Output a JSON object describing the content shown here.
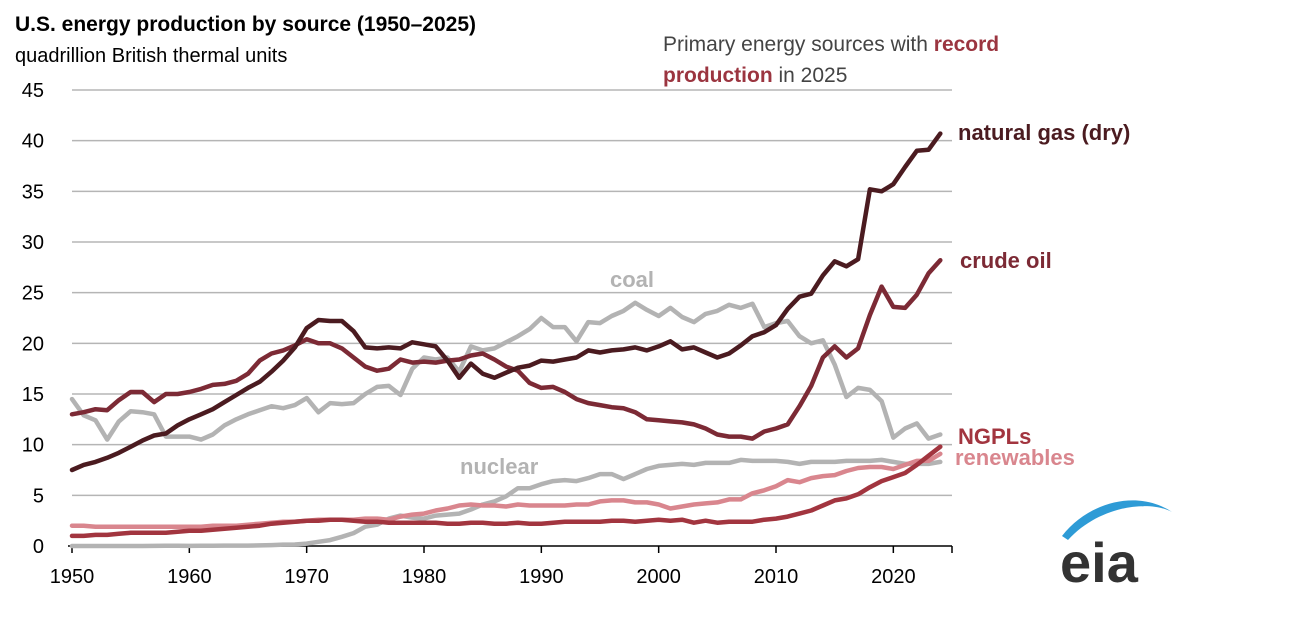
{
  "chart_data": {
    "type": "line",
    "title": "U.S. energy production by source (1950–2025)",
    "subtitle": "quadrillion British thermal units",
    "annotation": [
      "Primary energy sources with",
      "record",
      "production",
      "in 2025"
    ],
    "logo": "eia",
    "x": [
      1950,
      1951,
      1952,
      1953,
      1954,
      1955,
      1956,
      1957,
      1958,
      1959,
      1960,
      1961,
      1962,
      1963,
      1964,
      1965,
      1966,
      1967,
      1968,
      1969,
      1970,
      1971,
      1972,
      1973,
      1974,
      1975,
      1976,
      1977,
      1978,
      1979,
      1980,
      1981,
      1982,
      1983,
      1984,
      1985,
      1986,
      1987,
      1988,
      1989,
      1990,
      1991,
      1992,
      1993,
      1994,
      1995,
      1996,
      1997,
      1998,
      1999,
      2000,
      2001,
      2002,
      2003,
      2004,
      2005,
      2006,
      2007,
      2008,
      2009,
      2010,
      2011,
      2012,
      2013,
      2014,
      2015,
      2016,
      2017,
      2018,
      2019,
      2020,
      2021,
      2022,
      2023,
      2024
    ],
    "xlim": [
      1950,
      2025
    ],
    "xticks": [
      1950,
      1960,
      1970,
      1980,
      1990,
      2000,
      2010,
      2020
    ],
    "ylim": [
      0,
      45
    ],
    "yticks": [
      0,
      5,
      10,
      15,
      20,
      25,
      30,
      35,
      40,
      45
    ],
    "grid": true,
    "series": [
      {
        "name": "coal",
        "color": "#b3b3b3",
        "values": [
          14.5,
          12.9,
          12.4,
          10.5,
          12.3,
          13.3,
          13.2,
          13.0,
          10.8,
          10.8,
          10.8,
          10.5,
          11.0,
          11.9,
          12.5,
          13.0,
          13.4,
          13.8,
          13.6,
          13.9,
          14.6,
          13.2,
          14.1,
          14.0,
          14.1,
          15.0,
          15.7,
          15.8,
          14.9,
          17.5,
          18.6,
          18.4,
          18.6,
          17.2,
          19.7,
          19.3,
          19.5,
          20.1,
          20.7,
          21.4,
          22.5,
          21.6,
          21.6,
          20.2,
          22.1,
          22.0,
          22.7,
          23.2,
          24.0,
          23.3,
          22.7,
          23.5,
          22.6,
          22.1,
          22.9,
          23.2,
          23.8,
          23.5,
          23.9,
          21.6,
          22.0,
          22.2,
          20.7,
          20.0,
          20.3,
          17.9,
          14.7,
          15.6,
          15.4,
          14.3,
          10.7,
          11.6,
          12.1,
          10.6,
          11.0
        ]
      },
      {
        "name": "nuclear",
        "color": "#b3b3b3",
        "values": [
          0,
          0,
          0,
          0,
          0,
          0,
          0,
          0.01,
          0.02,
          0.02,
          0.01,
          0.02,
          0.03,
          0.04,
          0.04,
          0.04,
          0.06,
          0.09,
          0.14,
          0.15,
          0.24,
          0.41,
          0.58,
          0.91,
          1.27,
          1.9,
          2.1,
          2.7,
          3.0,
          2.8,
          2.7,
          3.0,
          3.1,
          3.2,
          3.6,
          4.1,
          4.4,
          4.9,
          5.7,
          5.7,
          6.1,
          6.4,
          6.5,
          6.4,
          6.7,
          7.1,
          7.1,
          6.6,
          7.1,
          7.6,
          7.9,
          8.0,
          8.1,
          8.0,
          8.2,
          8.2,
          8.2,
          8.5,
          8.4,
          8.4,
          8.4,
          8.3,
          8.1,
          8.3,
          8.3,
          8.3,
          8.4,
          8.4,
          8.4,
          8.5,
          8.3,
          8.1,
          8.1,
          8.1,
          8.3
        ]
      },
      {
        "name": "renewables",
        "color": "#d9868e",
        "values": [
          2.0,
          2.0,
          1.9,
          1.9,
          1.9,
          1.9,
          1.9,
          1.9,
          1.9,
          1.9,
          1.9,
          1.9,
          2.0,
          2.0,
          2.0,
          2.1,
          2.2,
          2.3,
          2.4,
          2.4,
          2.5,
          2.6,
          2.6,
          2.6,
          2.6,
          2.7,
          2.7,
          2.6,
          2.9,
          3.1,
          3.2,
          3.5,
          3.7,
          4.0,
          4.1,
          4.0,
          4.0,
          3.9,
          4.1,
          4.0,
          4.0,
          4.0,
          4.0,
          4.1,
          4.1,
          4.4,
          4.5,
          4.5,
          4.3,
          4.3,
          4.1,
          3.7,
          3.9,
          4.1,
          4.2,
          4.3,
          4.6,
          4.6,
          5.2,
          5.5,
          5.9,
          6.5,
          6.3,
          6.7,
          6.9,
          7.0,
          7.4,
          7.7,
          7.8,
          7.8,
          7.6,
          8.0,
          8.4,
          8.4,
          9.1
        ]
      },
      {
        "name": "NGPLs",
        "color": "#a2353f",
        "values": [
          1.0,
          1.0,
          1.1,
          1.1,
          1.2,
          1.3,
          1.3,
          1.3,
          1.3,
          1.4,
          1.5,
          1.5,
          1.6,
          1.7,
          1.8,
          1.9,
          2.0,
          2.2,
          2.3,
          2.4,
          2.5,
          2.5,
          2.6,
          2.6,
          2.5,
          2.4,
          2.4,
          2.3,
          2.3,
          2.3,
          2.3,
          2.3,
          2.2,
          2.2,
          2.3,
          2.3,
          2.2,
          2.2,
          2.3,
          2.2,
          2.2,
          2.3,
          2.4,
          2.4,
          2.4,
          2.4,
          2.5,
          2.5,
          2.4,
          2.5,
          2.6,
          2.5,
          2.6,
          2.3,
          2.5,
          2.3,
          2.4,
          2.4,
          2.4,
          2.6,
          2.7,
          2.9,
          3.2,
          3.5,
          4.0,
          4.5,
          4.7,
          5.1,
          5.8,
          6.4,
          6.8,
          7.2,
          8.0,
          8.9,
          9.8
        ]
      },
      {
        "name": "crude oil",
        "color": "#7c2a35",
        "values": [
          13.0,
          13.2,
          13.5,
          13.4,
          14.4,
          15.2,
          15.2,
          14.2,
          15.0,
          15.0,
          15.2,
          15.5,
          15.9,
          16.0,
          16.3,
          17.0,
          18.3,
          19.0,
          19.3,
          19.8,
          20.4,
          20.0,
          20.0,
          19.5,
          18.6,
          17.7,
          17.3,
          17.5,
          18.4,
          18.1,
          18.2,
          18.1,
          18.3,
          18.4,
          18.8,
          19.0,
          18.4,
          17.7,
          17.3,
          16.1,
          15.6,
          15.7,
          15.2,
          14.5,
          14.1,
          13.9,
          13.7,
          13.6,
          13.2,
          12.5,
          12.4,
          12.3,
          12.2,
          12.0,
          11.6,
          11.0,
          10.8,
          10.8,
          10.6,
          11.3,
          11.6,
          12.0,
          13.8,
          15.8,
          18.6,
          19.7,
          18.6,
          19.5,
          22.8,
          25.6,
          23.6,
          23.5,
          24.8,
          26.9,
          28.2
        ]
      },
      {
        "name": "natural gas (dry)",
        "color": "#4b1b20",
        "values": [
          7.5,
          8.0,
          8.3,
          8.7,
          9.2,
          9.8,
          10.4,
          10.9,
          11.1,
          11.9,
          12.5,
          13.0,
          13.5,
          14.2,
          14.9,
          15.6,
          16.2,
          17.2,
          18.3,
          19.6,
          21.5,
          22.3,
          22.2,
          22.2,
          21.2,
          19.6,
          19.5,
          19.6,
          19.5,
          20.1,
          19.9,
          19.7,
          18.3,
          16.6,
          18.0,
          17.0,
          16.6,
          17.1,
          17.6,
          17.8,
          18.3,
          18.2,
          18.4,
          18.6,
          19.3,
          19.1,
          19.3,
          19.4,
          19.6,
          19.3,
          19.7,
          20.2,
          19.4,
          19.6,
          19.1,
          18.6,
          19.0,
          19.8,
          20.7,
          21.1,
          21.8,
          23.4,
          24.6,
          24.9,
          26.7,
          28.1,
          27.6,
          28.3,
          35.2,
          35.0,
          35.7,
          37.4,
          39.0,
          39.1,
          40.7
        ]
      }
    ]
  }
}
